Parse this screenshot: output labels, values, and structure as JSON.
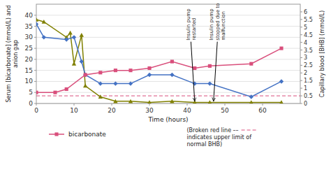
{
  "chart_data": {
    "type": "line",
    "xlabel": "Time (hours)",
    "ylabel": "Serum [bicarbonate] (mmol/L) and\nanion gap",
    "y2label": "Capillary blood [BHB] (mmol/L)",
    "xlim": [
      0,
      70
    ],
    "xticks": [
      0,
      10,
      20,
      30,
      40,
      50,
      60
    ],
    "ylim": [
      0,
      45
    ],
    "yticks": [
      0,
      5,
      10,
      15,
      20,
      25,
      30,
      35,
      40
    ],
    "y2lim": [
      0,
      6.5
    ],
    "y2ticks": [
      0,
      0.5,
      1,
      1.5,
      2,
      2.5,
      3,
      3.5,
      4,
      4.5,
      5,
      5.5,
      6
    ],
    "grid": true,
    "legend": "lower left",
    "series": [
      {
        "color": "#808000",
        "marker": "triangle",
        "x": [
          0,
          2,
          8,
          9,
          10,
          12,
          13,
          17,
          21,
          25,
          30,
          36,
          42,
          46,
          57,
          65
        ],
        "values": [
          38,
          37,
          30,
          32,
          18,
          31,
          8,
          3,
          1,
          1,
          0.5,
          1,
          0.5,
          0.5,
          0.5,
          0.5
        ]
      },
      {
        "color": "#4472c4",
        "marker": "diamond",
        "x": [
          0,
          2,
          8,
          10,
          12,
          13,
          17,
          21,
          25,
          30,
          36,
          42,
          46,
          57,
          65
        ],
        "values": [
          36,
          30,
          29,
          30,
          19,
          13,
          9,
          9,
          9,
          13,
          13,
          9,
          9,
          3,
          10
        ]
      },
      {
        "name": "bicarbonate",
        "color": "#d94f7c",
        "marker": "square",
        "x": [
          0,
          5,
          8,
          13,
          17,
          21,
          25,
          30,
          36,
          42,
          46,
          57,
          65
        ],
        "values": [
          5,
          5,
          6.5,
          13,
          14,
          15,
          15,
          16,
          19,
          16,
          17,
          18,
          25
        ]
      }
    ],
    "hlines": [
      {
        "value": 0.5,
        "axis": "y2",
        "color": "#d94f7c",
        "line_style": "dashed"
      }
    ],
    "annotations": [
      {
        "text": "Insulin pump\nrestarted",
        "x": 42,
        "y": 1.0,
        "text_x": 41,
        "text_y": 28
      },
      {
        "text": "Insulin pump\nstopped due to\nmalfunction",
        "x": 47,
        "y": 1.0,
        "text_x": 48,
        "text_y": 28
      }
    ],
    "note": "(Broken red line ––\nindicates upper limit of\nnormal BHB)"
  }
}
